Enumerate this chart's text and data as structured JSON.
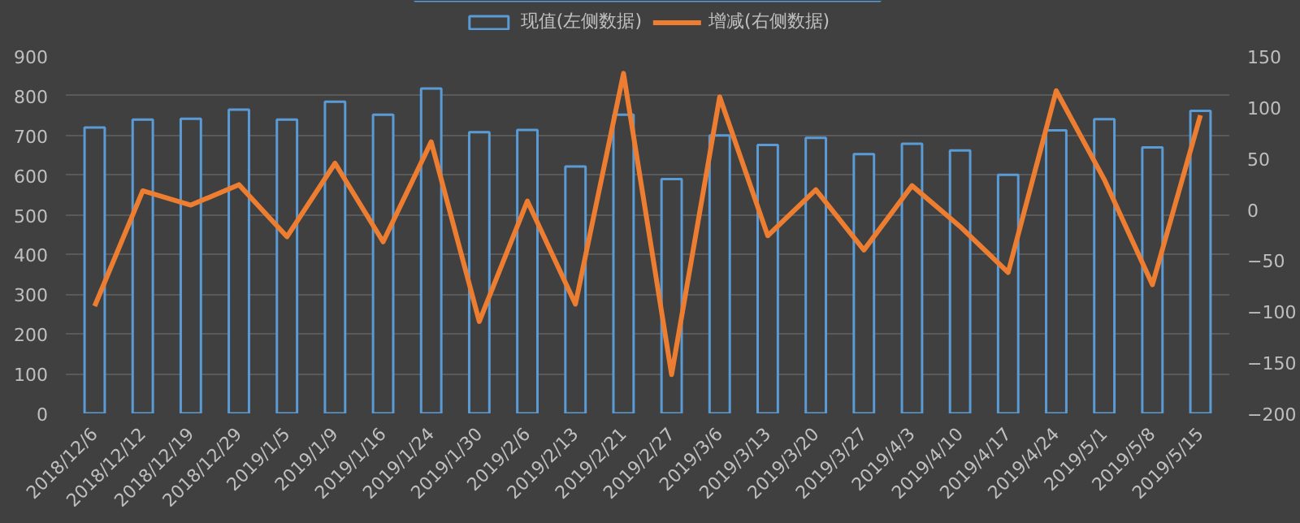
{
  "chart_data": {
    "type": "bar",
    "categories": [
      "2018/12/6",
      "2018/12/12",
      "2018/12/19",
      "2018/12/29",
      "2019/1/5",
      "2019/1/9",
      "2019/1/16",
      "2019/1/24",
      "2019/1/30",
      "2019/2/6",
      "2019/2/13",
      "2019/2/21",
      "2019/2/27",
      "2019/3/6",
      "2019/3/13",
      "2019/3/20",
      "2019/3/27",
      "2019/4/3",
      "2019/4/10",
      "2019/4/17",
      "2019/4/24",
      "2019/5/1",
      "2019/5/8",
      "2019/5/15"
    ],
    "series": [
      {
        "name": "现值(左侧数据)",
        "type": "bar",
        "color": "#5b9bd5",
        "values": [
          720,
          740,
          742,
          765,
          740,
          785,
          752,
          818,
          708,
          714,
          622,
          752,
          590,
          700,
          676,
          694,
          653,
          679,
          662,
          601,
          713,
          741,
          670,
          762
        ]
      },
      {
        "name": "增减(右侧数据)",
        "type": "line",
        "axis": "y2",
        "color": "#ed7d31",
        "values": [
          -95,
          18,
          4,
          24,
          -27,
          45,
          -32,
          66,
          -110,
          8,
          -93,
          133,
          -162,
          110,
          -26,
          19,
          -40,
          23,
          -17,
          -62,
          116,
          29,
          -74,
          92
        ]
      }
    ],
    "ylim": [
      0,
      900
    ],
    "yticks": [
      0,
      100,
      200,
      300,
      400,
      500,
      600,
      700,
      800,
      900
    ],
    "y2lim": [
      -200,
      150
    ],
    "y2ticks": [
      -200,
      -150,
      -100,
      -50,
      0,
      50,
      100,
      150
    ],
    "grid": "y",
    "legend": "top",
    "marker": "none",
    "line_style": "solid"
  }
}
